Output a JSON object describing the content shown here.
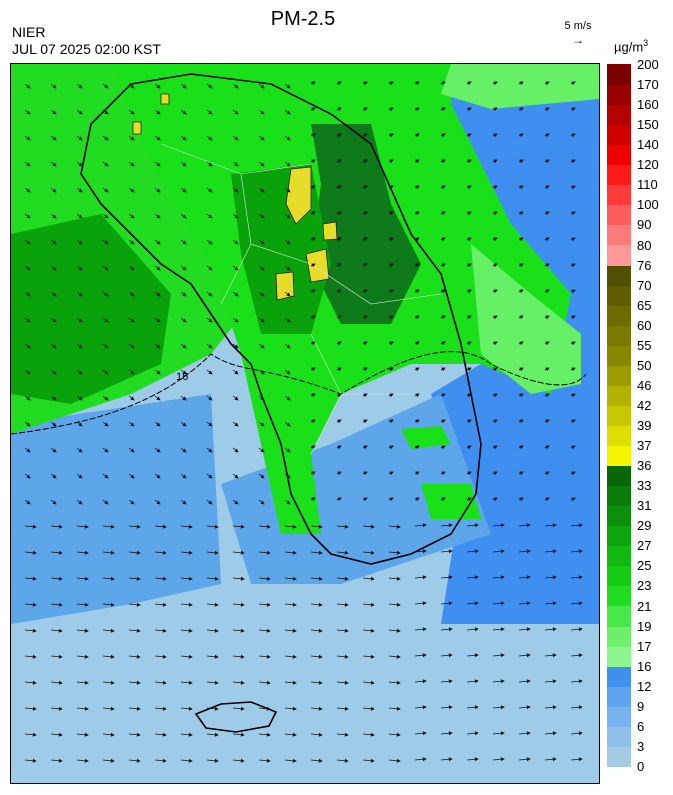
{
  "header": {
    "agency": "NIER",
    "timestamp": "JUL 07 2025 02:00 KST",
    "title": "PM-2.5",
    "wind_reference": "5 m/s",
    "unit_base": "µg/m",
    "unit_exp": "3"
  },
  "map": {
    "contour_label": "16",
    "palette": {
      "sea_low": "#9ecbe8",
      "blue_mid": "#5ea6ea",
      "blue_high": "#3f8ff0",
      "green_light": "#66f066",
      "green": "#19e019",
      "green_dark": "#0aa20a",
      "green_darker": "#0e7a1a",
      "yellow": "#e8dc2a"
    }
  },
  "legend": {
    "thresholds": [
      "0",
      "3",
      "6",
      "9",
      "12",
      "16",
      "17",
      "19",
      "21",
      "23",
      "25",
      "27",
      "29",
      "31",
      "33",
      "36",
      "37",
      "39",
      "42",
      "46",
      "50",
      "55",
      "60",
      "65",
      "70",
      "76",
      "80",
      "90",
      "100",
      "110",
      "120",
      "140",
      "150",
      "160",
      "170",
      "200"
    ],
    "colors": [
      "#a5cbe4",
      "#8fc0ea",
      "#78b3ef",
      "#5ea4ee",
      "#3f91ee",
      "#8ff58f",
      "#6ef06e",
      "#48e848",
      "#22dc22",
      "#14cc14",
      "#10b810",
      "#0ea40e",
      "#0c900c",
      "#0a7c0a",
      "#086808",
      "#f5f500",
      "#dede00",
      "#c8c800",
      "#b2b200",
      "#9c9c00",
      "#888800",
      "#7a7a00",
      "#6c6c00",
      "#5e5e00",
      "#505000",
      "#ff9999",
      "#ff7b7b",
      "#ff5d5d",
      "#ff3a3a",
      "#ff1a1a",
      "#ec0000",
      "#d00000",
      "#b40000",
      "#980000",
      "#7c0000"
    ]
  }
}
